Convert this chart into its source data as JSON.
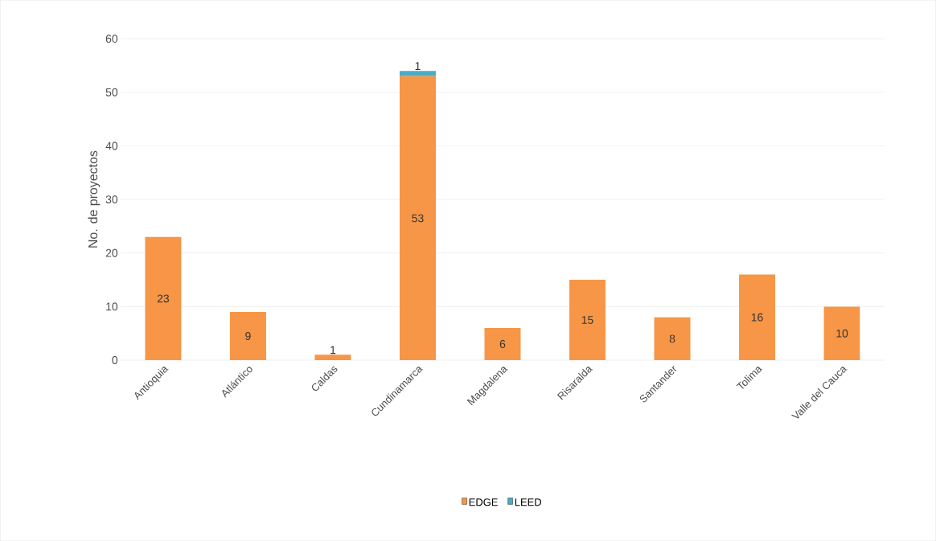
{
  "chart_data": {
    "type": "bar",
    "stacked": true,
    "ylabel": "No. de proyectos",
    "categories": [
      "Antioquia",
      "Atlántico",
      "Caldas",
      "Cundinamarca",
      "Magdalena",
      "Risaralda",
      "Santander",
      "Tolima",
      "Valle del Cauca"
    ],
    "series": [
      {
        "name": "EDGE",
        "color": "#f79646",
        "values": [
          23,
          9,
          1,
          53,
          6,
          15,
          8,
          16,
          10
        ]
      },
      {
        "name": "LEED",
        "color": "#4bacc6",
        "values": [
          null,
          null,
          null,
          1,
          null,
          null,
          null,
          null,
          null
        ]
      }
    ],
    "ylim": [
      0,
      60
    ],
    "yticks": [
      0,
      10,
      20,
      30,
      40,
      50,
      60
    ],
    "grid": "y",
    "legend": "bottom",
    "data_labels": true
  }
}
